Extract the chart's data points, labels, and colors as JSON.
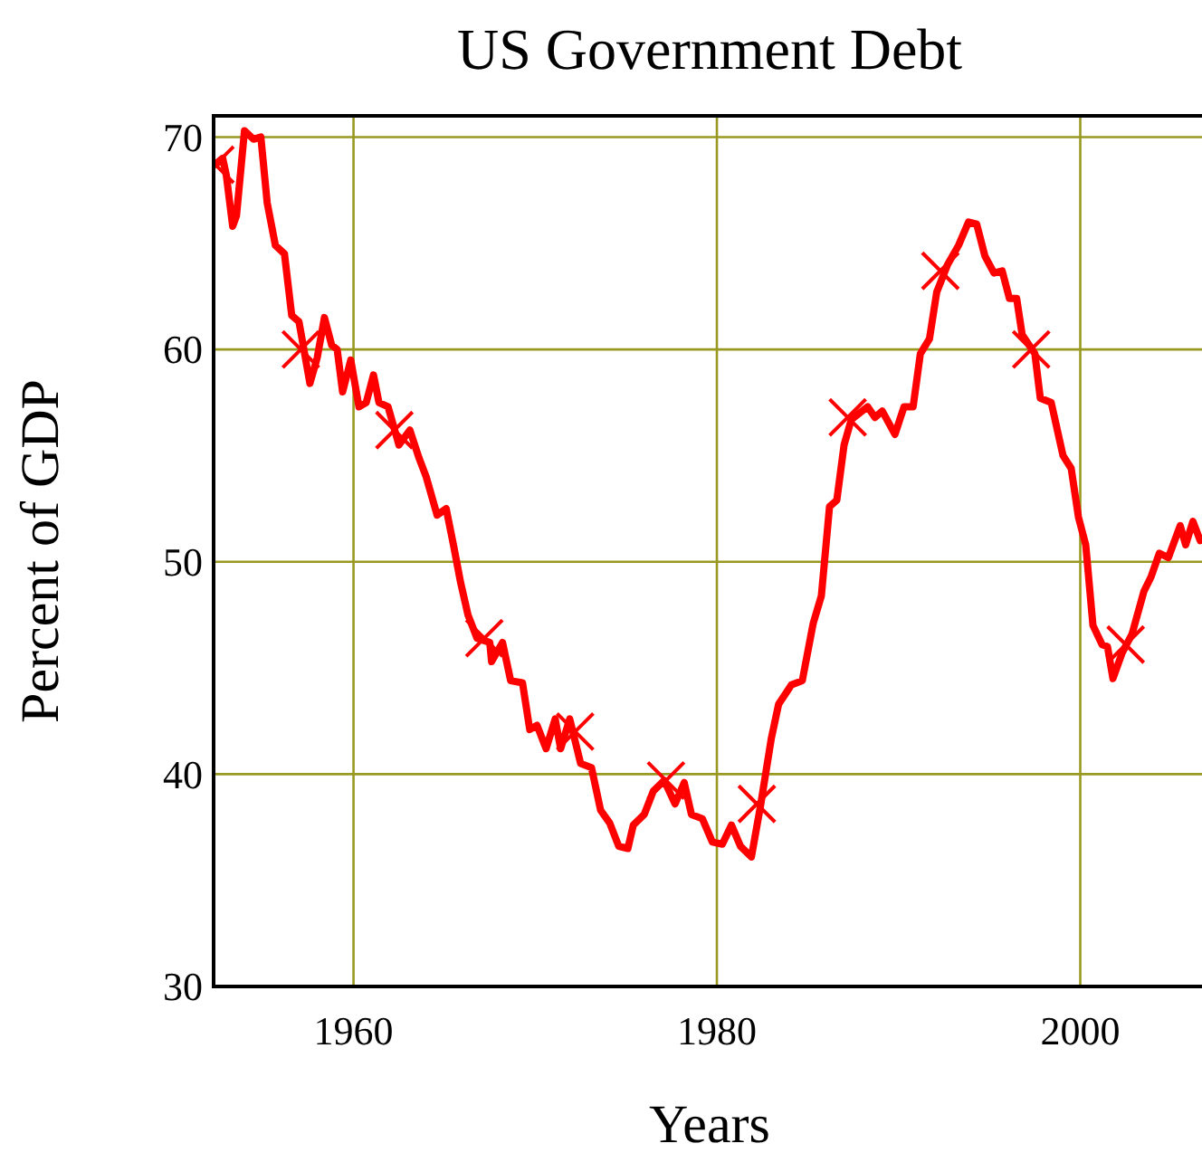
{
  "chart_data": {
    "type": "line",
    "title": "US Government Debt",
    "xlabel": "Years",
    "ylabel": "Percent of GDP",
    "xlim": [
      1952.3,
      2006.7
    ],
    "ylim": [
      30,
      71
    ],
    "xticks": [
      1960,
      1980,
      2000
    ],
    "yticks": [
      30,
      40,
      50,
      60,
      70
    ],
    "grid": true,
    "series": [
      {
        "color": "#ff0000",
        "line_style": "solid",
        "marker": "none",
        "x": [
          1952.38,
          1952.8,
          1953.0,
          1953.35,
          1953.56,
          1954.0,
          1954.5,
          1954.9,
          1955.25,
          1955.7,
          1956.2,
          1956.6,
          1957.0,
          1957.6,
          1958.0,
          1958.4,
          1958.8,
          1959.1,
          1959.4,
          1959.85,
          1960.3,
          1960.7,
          1961.1,
          1961.4,
          1961.9,
          1962.5,
          1963.1,
          1963.6,
          1964.0,
          1964.6,
          1965.1,
          1965.5,
          1965.9,
          1966.3,
          1966.8,
          1967.5,
          1967.6,
          1968.2,
          1968.65,
          1969.3,
          1969.7,
          1970.1,
          1970.6,
          1971.1,
          1971.4,
          1971.9,
          1972.5,
          1973.1,
          1973.6,
          1974.1,
          1974.6,
          1975.1,
          1975.4,
          1976.0,
          1976.5,
          1977.1,
          1977.7,
          1978.2,
          1978.6,
          1979.2,
          1979.75,
          1980.3,
          1980.8,
          1981.3,
          1981.9,
          1982.4,
          1983.0,
          1983.4,
          1984.1,
          1984.7,
          1985.3,
          1985.75,
          1986.2,
          1986.6,
          1987.0,
          1987.4,
          1988.3,
          1988.7,
          1989.1,
          1989.8,
          1990.3,
          1990.8,
          1991.2,
          1991.7,
          1992.1,
          1992.7,
          1993.3,
          1993.85,
          1994.3,
          1994.75,
          1995.25,
          1995.7,
          1996.1,
          1996.5,
          1996.8,
          1997.5,
          1997.8,
          1998.4,
          1999.05,
          1999.5,
          1999.9,
          2000.3,
          2000.7,
          2001.2,
          2001.5,
          2001.8,
          2002.3,
          2002.85,
          2003.5,
          2003.9,
          2004.35,
          2004.85,
          2005.5,
          2005.8,
          2006.2,
          2006.6
        ],
        "values": [
          68.7,
          69.0,
          68.2,
          65.8,
          66.3,
          70.3,
          69.9,
          70.0,
          66.9,
          64.9,
          64.5,
          61.6,
          61.3,
          58.4,
          59.6,
          61.5,
          60.2,
          60.0,
          58.0,
          59.5,
          57.3,
          57.5,
          58.8,
          57.5,
          57.3,
          55.5,
          56.2,
          54.9,
          54.0,
          52.2,
          52.5,
          50.8,
          49.0,
          47.5,
          46.4,
          46.2,
          45.3,
          46.2,
          44.4,
          44.3,
          42.1,
          42.3,
          41.2,
          42.6,
          41.2,
          42.6,
          40.5,
          40.3,
          38.3,
          37.7,
          36.6,
          36.5,
          37.6,
          38.1,
          39.2,
          39.7,
          38.6,
          39.6,
          38.1,
          37.9,
          36.8,
          36.7,
          37.6,
          36.6,
          36.1,
          38.5,
          41.7,
          43.3,
          44.2,
          44.4,
          47.1,
          48.4,
          52.6,
          52.9,
          55.5,
          56.7,
          57.3,
          56.8,
          57.1,
          56.0,
          57.3,
          57.3,
          59.8,
          60.5,
          62.7,
          64.0,
          64.9,
          66.0,
          65.9,
          64.4,
          63.6,
          63.7,
          62.4,
          62.4,
          60.7,
          59.8,
          57.7,
          57.5,
          55.0,
          54.4,
          52.1,
          50.8,
          47.0,
          46.1,
          46.0,
          44.5,
          45.7,
          46.6,
          48.6,
          49.3,
          50.4,
          50.2,
          51.7,
          50.8,
          51.9,
          51.0
        ]
      },
      {
        "type": "scatter",
        "color": "#ff0000",
        "marker": "cross",
        "x": [
          1952.4,
          1957.1,
          1962.25,
          1967.2,
          1972.2,
          1977.2,
          1982.2,
          1987.2,
          1992.3,
          1997.3,
          2002.5
        ],
        "values": [
          68.7,
          60.0,
          56.2,
          46.4,
          42.0,
          39.7,
          38.6,
          56.8,
          63.7,
          60.0,
          46.1
        ]
      }
    ]
  }
}
